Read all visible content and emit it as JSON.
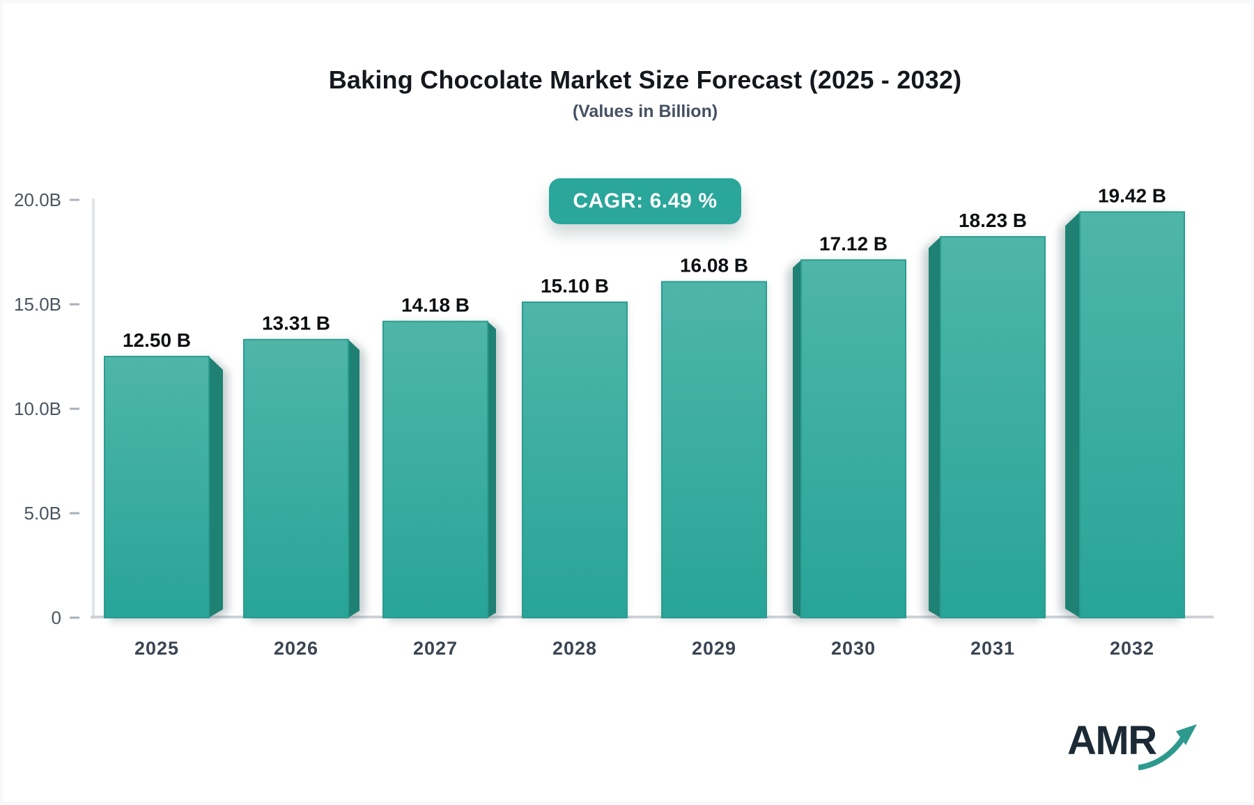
{
  "brand": {
    "logo_text": "AMR"
  },
  "chart_data": {
    "type": "bar",
    "title": "Baking Chocolate Market Size Forecast (2025 - 2032)",
    "subtitle": "(Values in Billion)",
    "cagr_label": "CAGR: 6.49 %",
    "categories": [
      "2025",
      "2026",
      "2027",
      "2028",
      "2029",
      "2030",
      "2031",
      "2032"
    ],
    "values": [
      12.5,
      13.31,
      14.18,
      15.1,
      16.08,
      17.12,
      18.23,
      19.42
    ],
    "value_labels": [
      "12.50 B",
      "13.31 B",
      "14.18 B",
      "15.10 B",
      "16.08 B",
      "17.12 B",
      "18.23 B",
      "19.42 B"
    ],
    "ylim": [
      0,
      20
    ],
    "yticks": [
      {
        "value": 0,
        "label": "0"
      },
      {
        "value": 5,
        "label": "5.0B"
      },
      {
        "value": 10,
        "label": "10.0B"
      },
      {
        "value": 15,
        "label": "15.0B"
      },
      {
        "value": 20,
        "label": "20.0B"
      }
    ],
    "grid": "off",
    "legend": "none",
    "colors": {
      "accent": "#2aa69b",
      "bar_face_top": "#4fb5a9",
      "bar_face_bottom": "#28a498",
      "bar_face_stroke": "#2b9c90",
      "bar_side": "#1e8174",
      "axis_line": "#e1e4e8",
      "baseline": "#cdd2d7",
      "tick_mark": "#a9b0b8",
      "tick_label": "#4a5560",
      "x_label": "#3a4553",
      "value_label": "#0c0f12",
      "title": "#14171c",
      "subtitle": "#445062",
      "logo_text": "#1c2a35",
      "logo_arrow": "#2e9a8e"
    }
  }
}
